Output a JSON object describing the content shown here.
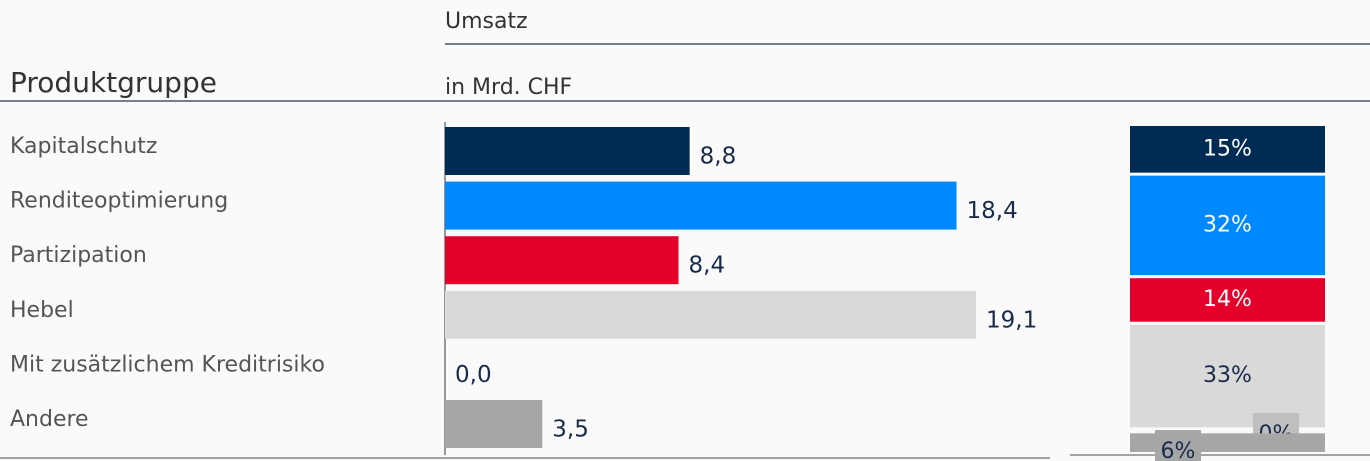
{
  "chart_data": [
    {
      "type": "hbar",
      "title": "Umsatz",
      "subtitle": "in Mrd. CHF",
      "category_label": "Produktgruppe",
      "categories": [
        "Kapitalschutz",
        "Renditeoptimierung",
        "Partizipation",
        "Hebel",
        "Mit zusätzlichem Kreditrisiko",
        "Andere"
      ],
      "values": [
        8.8,
        18.4,
        8.4,
        19.1,
        0.0,
        3.5
      ],
      "value_labels": [
        "8,8",
        "18,4",
        "8,4",
        "19,1",
        "0,0",
        "3,5"
      ],
      "colors": [
        "#002b55",
        "#0088ff",
        "#e4002b",
        "#d9d9d9",
        "#bfbfbf",
        "#a6a6a6"
      ]
    },
    {
      "type": "stacked_share",
      "values": [
        15,
        32,
        14,
        33,
        0,
        6
      ],
      "value_labels": [
        "15%",
        "32%",
        "14%",
        "33%",
        "0%",
        "6%"
      ],
      "colors": [
        "#002b55",
        "#0088ff",
        "#e4002b",
        "#d9d9d9",
        "#bfbfbf",
        "#a6a6a6"
      ],
      "label_colors": [
        "#ffffff",
        "#ffffff",
        "#ffffff",
        "#1a2b4a",
        "#1a2b4a",
        "#1a2b4a"
      ]
    }
  ]
}
